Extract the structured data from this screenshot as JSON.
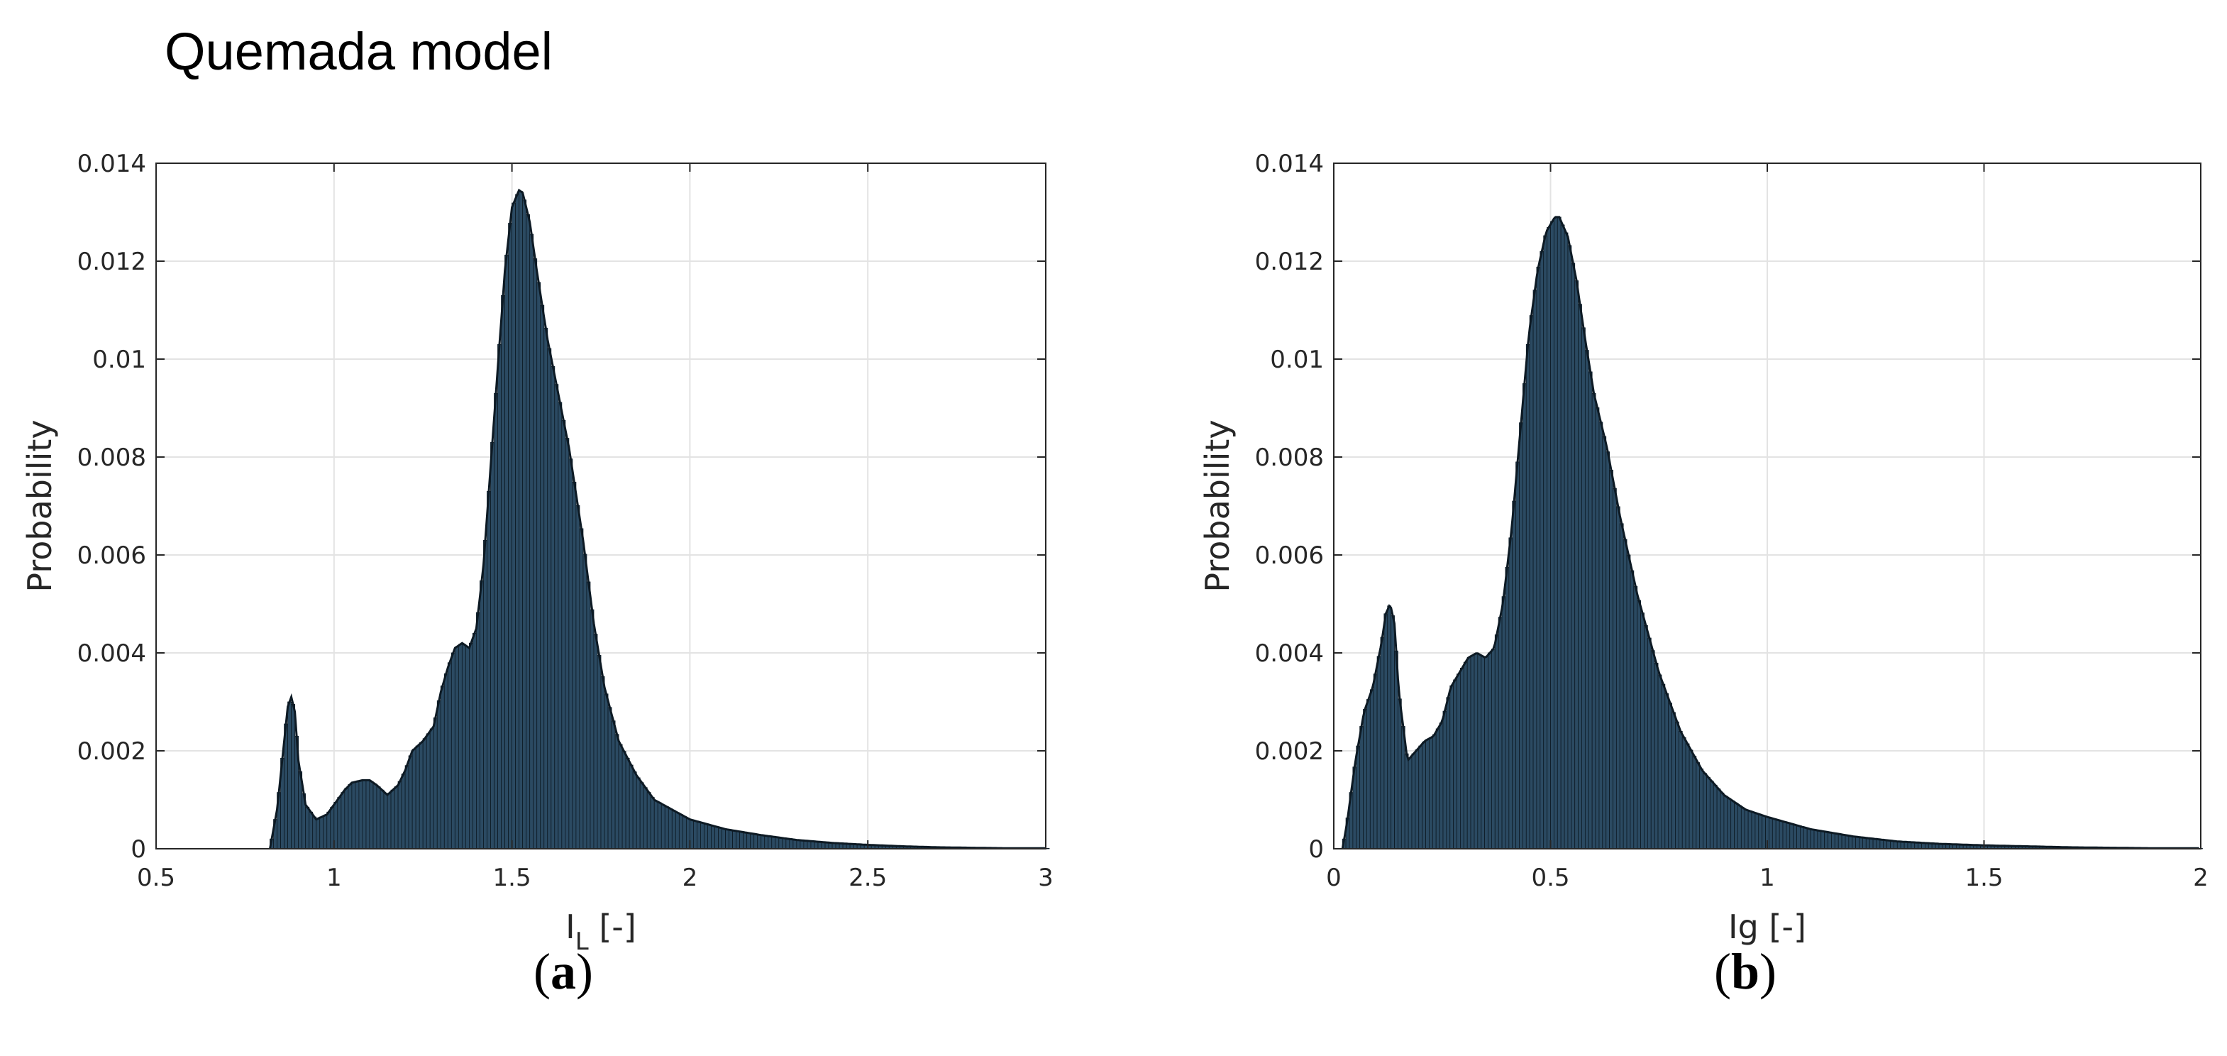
{
  "figure": {
    "title": "Quemada model",
    "panels": [
      {
        "open": "(",
        "letter": "a",
        "close": ")"
      },
      {
        "open": "(",
        "letter": "b",
        "close": ")"
      }
    ]
  },
  "colors": {
    "bar_fill": "#2b4a62",
    "bar_edge": "#0d1a24",
    "bar_highlight": "#5c9ac4",
    "grid": "#e3e3e3",
    "axis": "#262626"
  },
  "chart_data": [
    {
      "type": "bar",
      "xlabel": "I",
      "xlabel_sub": "L",
      "xlabel_unit": " [-]",
      "ylabel": "Probability",
      "xlim": [
        0.5,
        3
      ],
      "ylim": [
        0,
        0.014
      ],
      "xticks": [
        0.5,
        1,
        1.5,
        2,
        2.5,
        3
      ],
      "xtick_labels": [
        "0.5",
        "1",
        "1.5",
        "2",
        "2.5",
        "3"
      ],
      "yticks": [
        0,
        0.002,
        0.004,
        0.006,
        0.008,
        0.01,
        0.012,
        0.014
      ],
      "ytick_labels": [
        "0",
        "0.002",
        "0.004",
        "0.006",
        "0.008",
        "0.01",
        "0.012",
        "0.014"
      ],
      "grid": true,
      "bin_width": 0.01,
      "x": [
        0.82,
        0.84,
        0.86,
        0.87,
        0.88,
        0.89,
        0.9,
        0.92,
        0.95,
        0.98,
        1.0,
        1.03,
        1.05,
        1.08,
        1.1,
        1.12,
        1.15,
        1.18,
        1.2,
        1.22,
        1.25,
        1.28,
        1.3,
        1.32,
        1.34,
        1.36,
        1.38,
        1.4,
        1.42,
        1.44,
        1.46,
        1.48,
        1.5,
        1.52,
        1.53,
        1.55,
        1.57,
        1.6,
        1.63,
        1.66,
        1.7,
        1.73,
        1.76,
        1.8,
        1.85,
        1.9,
        1.95,
        2.0,
        2.1,
        2.2,
        2.3,
        2.4,
        2.5,
        2.6,
        2.7,
        2.8,
        2.9,
        3.0
      ],
      "y": [
        0.0,
        0.0008,
        0.0022,
        0.0029,
        0.0031,
        0.0028,
        0.0018,
        0.0009,
        0.0006,
        0.0007,
        0.0009,
        0.0012,
        0.00135,
        0.0014,
        0.0014,
        0.0013,
        0.0011,
        0.0013,
        0.0016,
        0.002,
        0.0022,
        0.0025,
        0.0032,
        0.0037,
        0.0041,
        0.0042,
        0.0041,
        0.0045,
        0.0058,
        0.0078,
        0.0098,
        0.0118,
        0.0131,
        0.01345,
        0.0134,
        0.0128,
        0.0118,
        0.0104,
        0.0093,
        0.0082,
        0.0063,
        0.0046,
        0.0033,
        0.0022,
        0.0015,
        0.001,
        0.0008,
        0.0006,
        0.0004,
        0.00028,
        0.00018,
        0.00012,
        8e-05,
        5e-05,
        3e-05,
        2e-05,
        1e-05,
        1e-05
      ]
    },
    {
      "type": "bar",
      "xlabel": "Ig [-]",
      "ylabel": "Probability",
      "xlim": [
        0,
        2
      ],
      "ylim": [
        0,
        0.014
      ],
      "xticks": [
        0,
        0.5,
        1,
        1.5,
        2
      ],
      "xtick_labels": [
        "0",
        "0.5",
        "1",
        "1.5",
        "2"
      ],
      "yticks": [
        0,
        0.002,
        0.004,
        0.006,
        0.008,
        0.01,
        0.012,
        0.014
      ],
      "ytick_labels": [
        "0",
        "0.002",
        "0.004",
        "0.006",
        "0.008",
        "0.01",
        "0.012",
        "0.014"
      ],
      "grid": true,
      "bin_width": 0.008,
      "x": [
        0.02,
        0.03,
        0.05,
        0.07,
        0.09,
        0.11,
        0.12,
        0.13,
        0.14,
        0.15,
        0.17,
        0.19,
        0.21,
        0.23,
        0.25,
        0.27,
        0.29,
        0.31,
        0.33,
        0.35,
        0.37,
        0.39,
        0.41,
        0.43,
        0.45,
        0.47,
        0.49,
        0.51,
        0.52,
        0.54,
        0.56,
        0.58,
        0.6,
        0.63,
        0.66,
        0.7,
        0.75,
        0.8,
        0.85,
        0.9,
        0.95,
        1.0,
        1.1,
        1.2,
        1.3,
        1.4,
        1.5,
        1.6,
        1.7,
        1.8,
        1.9,
        2.0
      ],
      "y": [
        0.0,
        0.0005,
        0.0018,
        0.0028,
        0.0033,
        0.0042,
        0.0048,
        0.005,
        0.0046,
        0.0032,
        0.0018,
        0.002,
        0.0022,
        0.0023,
        0.0026,
        0.0033,
        0.0036,
        0.0039,
        0.004,
        0.0039,
        0.0041,
        0.005,
        0.0065,
        0.0085,
        0.0105,
        0.0118,
        0.0126,
        0.0129,
        0.0129,
        0.0125,
        0.0116,
        0.0104,
        0.0093,
        0.0082,
        0.0068,
        0.0052,
        0.0036,
        0.0024,
        0.0016,
        0.0011,
        0.0008,
        0.00065,
        0.0004,
        0.00025,
        0.00015,
        0.0001,
        7e-05,
        5e-05,
        3e-05,
        2e-05,
        1e-05,
        1e-05
      ]
    }
  ]
}
